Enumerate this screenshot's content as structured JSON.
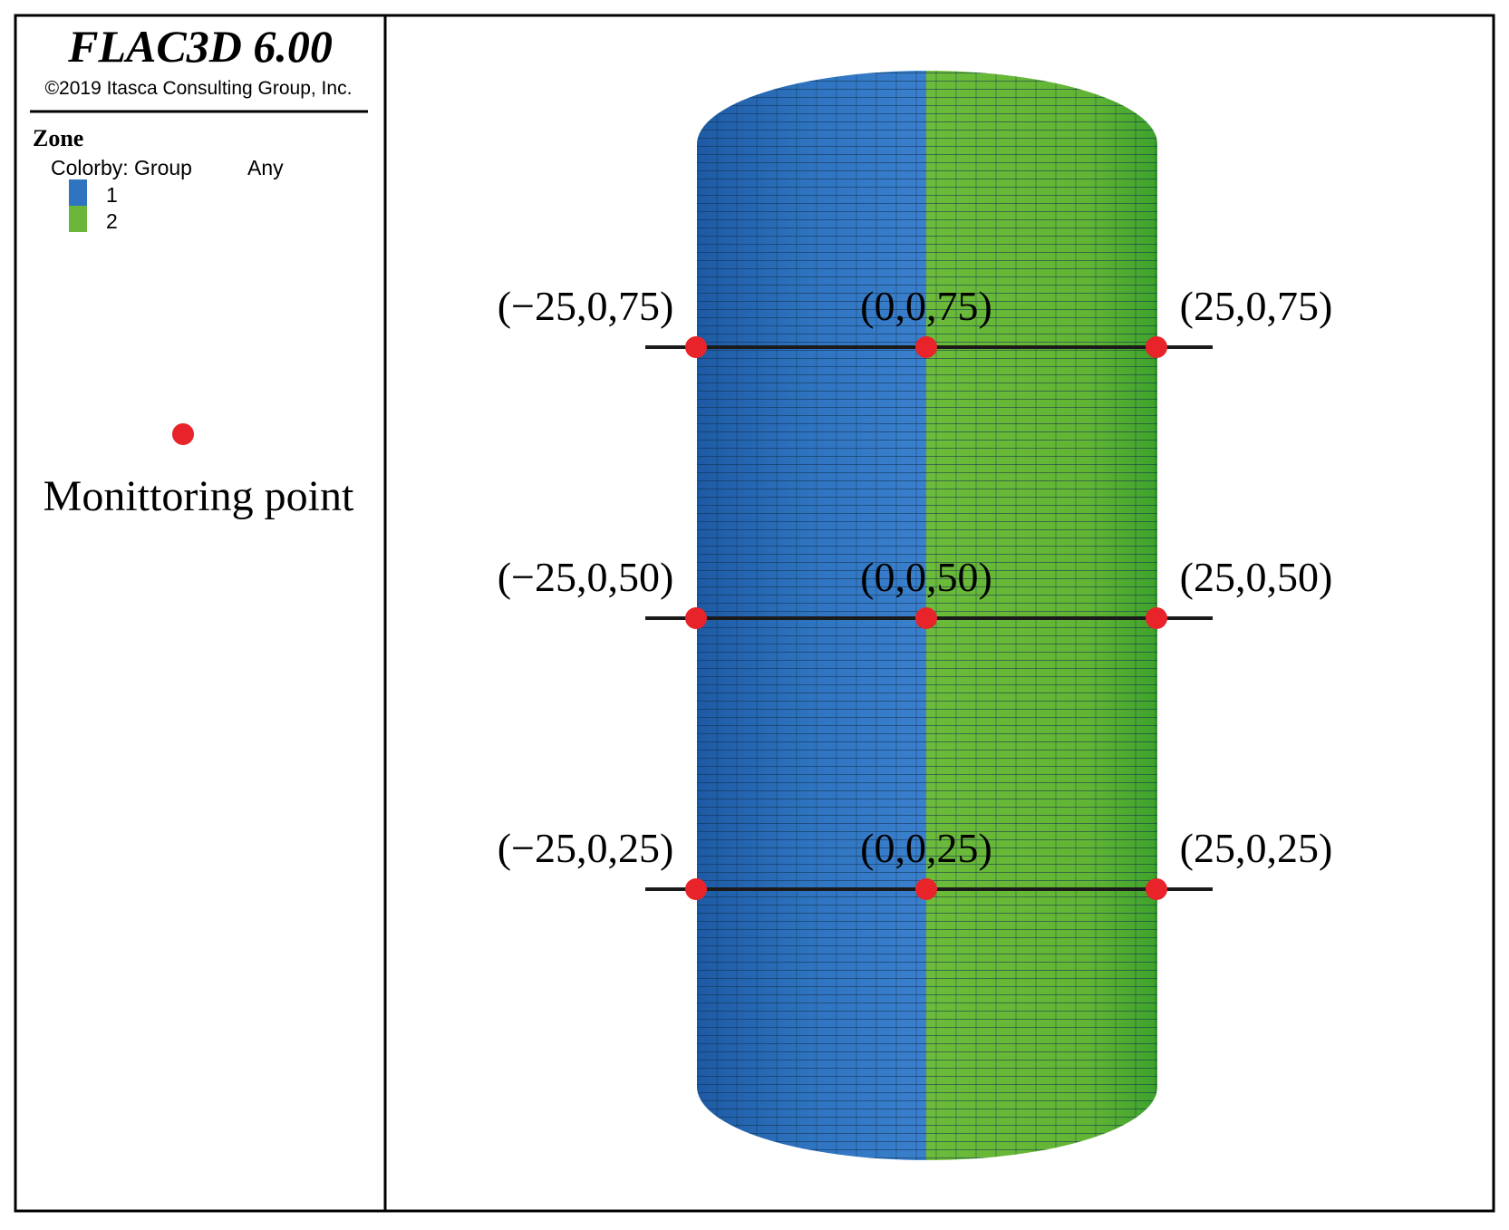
{
  "legend": {
    "title": "FLAC3D 6.00",
    "copyright": "©2019 Itasca Consulting Group, Inc.",
    "section": "Zone",
    "colorby": "Colorby: Group",
    "any": "Any",
    "groups": [
      {
        "label": "1",
        "color": "#2f74c0"
      },
      {
        "label": "2",
        "color": "#6ab73a"
      }
    ],
    "marker_label": "Monittoring point",
    "marker_color": "#e8232a"
  },
  "points": [
    {
      "label": "(−25,0,75)",
      "x": -25,
      "z": 75
    },
    {
      "label": "(0,0,75)",
      "x": 0,
      "z": 75
    },
    {
      "label": "(25,0,75)",
      "x": 25,
      "z": 75
    },
    {
      "label": "(−25,0,50)",
      "x": -25,
      "z": 50
    },
    {
      "label": "(0,0,50)",
      "x": 0,
      "z": 50
    },
    {
      "label": "(25,0,50)",
      "x": 25,
      "z": 50
    },
    {
      "label": "(−25,0,25)",
      "x": -25,
      "z": 25
    },
    {
      "label": "(0,0,25)",
      "x": 0,
      "z": 25
    },
    {
      "label": "(25,0,25)",
      "x": 25,
      "z": 25
    }
  ]
}
